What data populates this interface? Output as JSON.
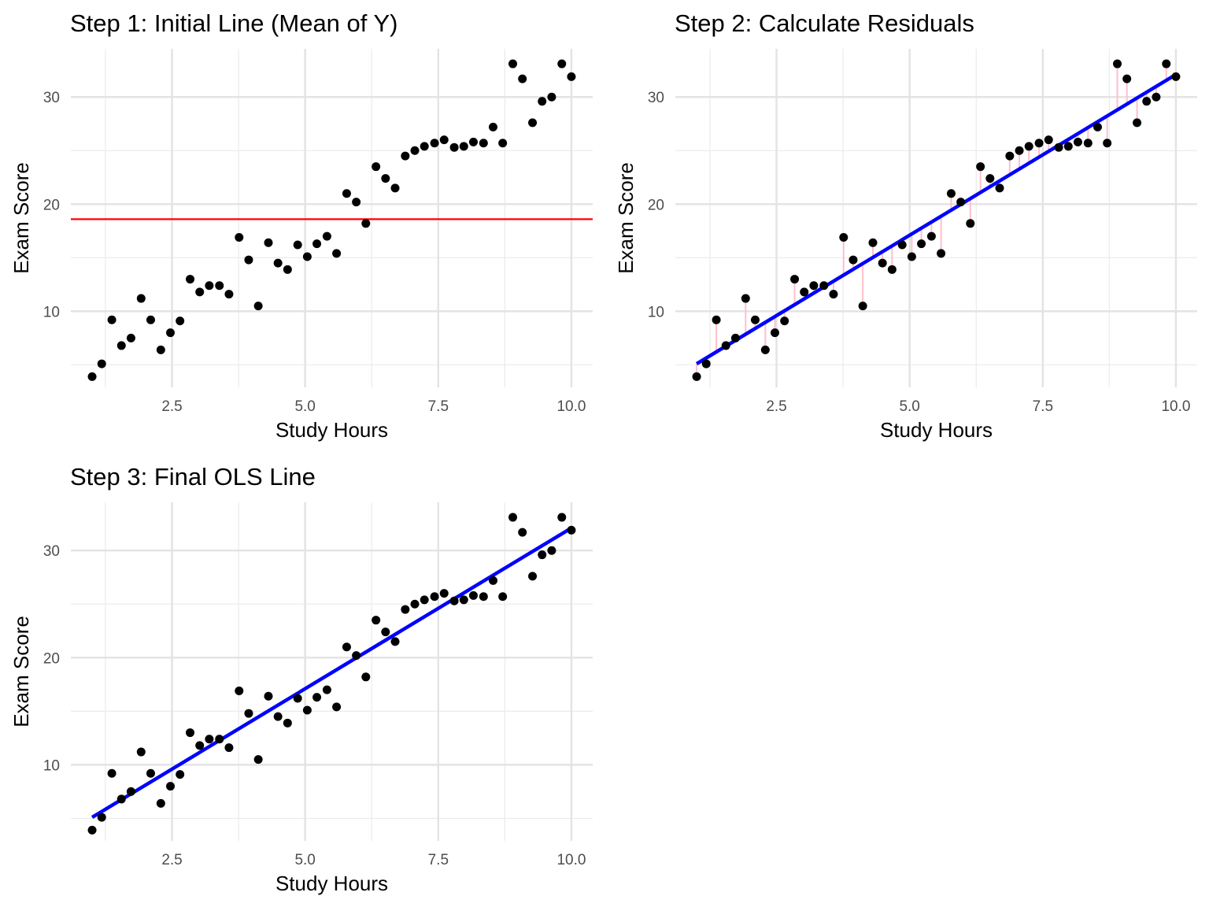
{
  "chart_data": [
    {
      "type": "scatter",
      "title": "Step 1: Initial Line (Mean of Y)",
      "xlabel": "Study Hours",
      "ylabel": "Exam Score",
      "xlim": [
        0.6,
        10.4
      ],
      "ylim": [
        2.9,
        34.5
      ],
      "x_ticks": [
        2.5,
        5.0,
        7.5,
        10.0
      ],
      "x_tick_labels": [
        "2.5",
        "5.0",
        "7.5",
        "10.0"
      ],
      "y_ticks": [
        10,
        20,
        30
      ],
      "y_tick_labels": [
        "10",
        "20",
        "30"
      ],
      "grid": true,
      "points_color": "#000000",
      "mean_line": {
        "y": 18.6,
        "color": "#ff0000"
      },
      "show_fit": false,
      "show_residuals": false
    },
    {
      "type": "scatter",
      "title": "Step 2: Calculate Residuals",
      "xlabel": "Study Hours",
      "ylabel": "Exam Score",
      "xlim": [
        0.6,
        10.4
      ],
      "ylim": [
        2.9,
        34.5
      ],
      "x_ticks": [
        2.5,
        5.0,
        7.5,
        10.0
      ],
      "x_tick_labels": [
        "2.5",
        "5.0",
        "7.5",
        "10.0"
      ],
      "y_ticks": [
        10,
        20,
        30
      ],
      "y_tick_labels": [
        "10",
        "20",
        "30"
      ],
      "grid": true,
      "points_color": "#000000",
      "fit_line": {
        "x": [
          1.0,
          10.0
        ],
        "y": [
          5.1,
          32.1
        ],
        "color": "#0000ff"
      },
      "residual_color": "#ffc0cb",
      "show_fit": true,
      "show_residuals": true
    },
    {
      "type": "scatter",
      "title": "Step 3: Final OLS Line",
      "xlabel": "Study Hours",
      "ylabel": "Exam Score",
      "xlim": [
        0.6,
        10.4
      ],
      "ylim": [
        2.9,
        34.5
      ],
      "x_ticks": [
        2.5,
        5.0,
        7.5,
        10.0
      ],
      "x_tick_labels": [
        "2.5",
        "5.0",
        "7.5",
        "10.0"
      ],
      "y_ticks": [
        10,
        20,
        30
      ],
      "y_tick_labels": [
        "10",
        "20",
        "30"
      ],
      "grid": true,
      "points_color": "#000000",
      "fit_line": {
        "x": [
          1.0,
          10.0
        ],
        "y": [
          5.1,
          32.1
        ],
        "color": "#0000ff"
      },
      "show_fit": true,
      "show_residuals": false
    }
  ],
  "points": [
    [
      1.0,
      3.9
    ],
    [
      1.18,
      5.1
    ],
    [
      1.37,
      9.2
    ],
    [
      1.55,
      6.8
    ],
    [
      1.73,
      7.5
    ],
    [
      1.92,
      11.2
    ],
    [
      2.1,
      9.2
    ],
    [
      2.29,
      6.4
    ],
    [
      2.47,
      8.0
    ],
    [
      2.65,
      9.1
    ],
    [
      2.84,
      13.0
    ],
    [
      3.02,
      11.8
    ],
    [
      3.2,
      12.4
    ],
    [
      3.39,
      12.4
    ],
    [
      3.57,
      11.6
    ],
    [
      3.76,
      16.9
    ],
    [
      3.94,
      14.8
    ],
    [
      4.12,
      10.5
    ],
    [
      4.31,
      16.4
    ],
    [
      4.49,
      14.5
    ],
    [
      4.67,
      13.9
    ],
    [
      4.86,
      16.2
    ],
    [
      5.04,
      15.1
    ],
    [
      5.22,
      16.3
    ],
    [
      5.41,
      17.0
    ],
    [
      5.59,
      15.4
    ],
    [
      5.78,
      21.0
    ],
    [
      5.96,
      20.2
    ],
    [
      6.14,
      18.2
    ],
    [
      6.33,
      23.5
    ],
    [
      6.51,
      22.4
    ],
    [
      6.69,
      21.5
    ],
    [
      6.88,
      24.5
    ],
    [
      7.06,
      25.0
    ],
    [
      7.24,
      25.4
    ],
    [
      7.43,
      25.7
    ],
    [
      7.61,
      26.0
    ],
    [
      7.8,
      25.3
    ],
    [
      7.98,
      25.4
    ],
    [
      8.16,
      25.8
    ],
    [
      8.35,
      25.7
    ],
    [
      8.53,
      27.2
    ],
    [
      8.71,
      25.7
    ],
    [
      8.9,
      33.1
    ],
    [
      9.08,
      31.7
    ],
    [
      9.27,
      27.6
    ],
    [
      9.45,
      29.6
    ],
    [
      9.63,
      30.0
    ],
    [
      9.82,
      33.1
    ],
    [
      10.0,
      31.9
    ]
  ]
}
